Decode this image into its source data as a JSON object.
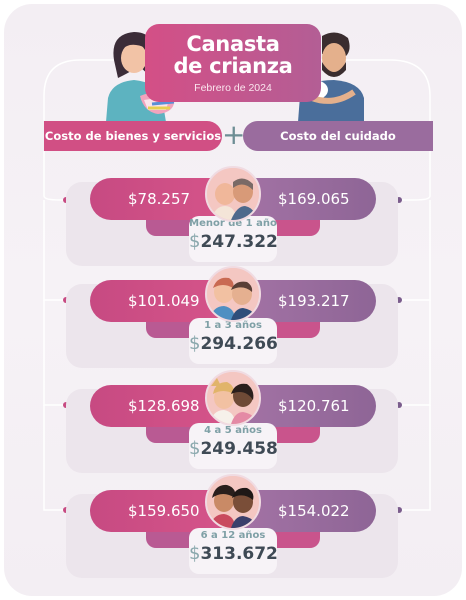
{
  "title": {
    "line1": "Canasta",
    "line2": "de crianza",
    "date": "Febrero de 2024"
  },
  "headers": {
    "left": "Costo de bienes y servicios",
    "plus": "+",
    "right": "Costo del cuidado"
  },
  "rows": [
    {
      "goods": "$78.257",
      "care": "$169.065",
      "age": "Menor de 1 año",
      "currency": "$",
      "total": "247.322"
    },
    {
      "goods": "$101.049",
      "care": "$193.217",
      "age": "1 a 3 años",
      "currency": "$",
      "total": "294.266"
    },
    {
      "goods": "$128.698",
      "care": "$120.761",
      "age": "4 a 5 años",
      "currency": "$",
      "total": "249.458"
    },
    {
      "goods": "$159.650",
      "care": "$154.022",
      "age": "6 a 12 años",
      "currency": "$",
      "total": "313.672"
    }
  ],
  "colors": {
    "pink": "#d14f84",
    "purple": "#9a6c9e",
    "teal": "#7fa0a6",
    "dark": "#3f4a55"
  }
}
